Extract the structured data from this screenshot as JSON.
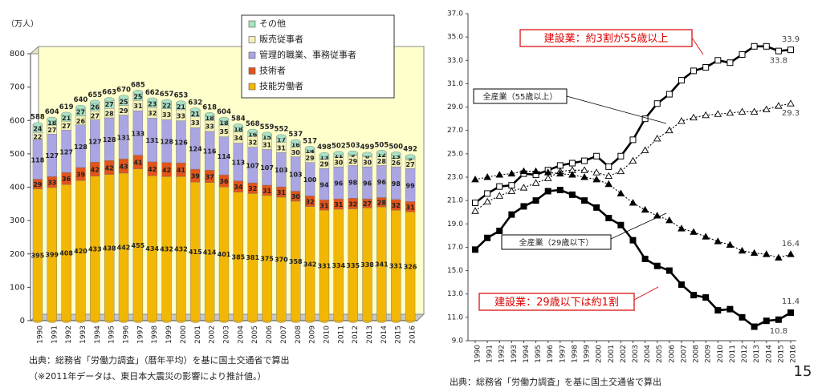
{
  "chart_data": [
    {
      "type": "bar",
      "stacked": true,
      "ylabel": "（万人）",
      "categories": [
        "1990",
        "1991",
        "1992",
        "1993",
        "1994",
        "1995",
        "1996",
        "1997",
        "1998",
        "1999",
        "2000",
        "2001",
        "2002",
        "2003",
        "2004",
        "2005",
        "2006",
        "2007",
        "2008",
        "2009",
        "2010",
        "2011",
        "2012",
        "2013",
        "2014",
        "2015",
        "2016"
      ],
      "series": [
        {
          "name": "技能労働者",
          "color": "#f2b705",
          "values": [
            395,
            399,
            408,
            420,
            433,
            438,
            442,
            455,
            434,
            432,
            432,
            415,
            414,
            401,
            385,
            381,
            375,
            370,
            358,
            342,
            331,
            334,
            335,
            338,
            341,
            331,
            326
          ]
        },
        {
          "name": "技術者",
          "color": "#e2541b",
          "values": [
            29,
            33,
            36,
            39,
            42,
            42,
            43,
            41,
            42,
            42,
            41,
            39,
            37,
            36,
            34,
            32,
            31,
            31,
            30,
            32,
            31,
            31,
            32,
            27,
            28,
            32,
            31
          ]
        },
        {
          "name": "管理的職業、事務従事者",
          "color": "#aaa5e3",
          "values": [
            118,
            127,
            127,
            128,
            127,
            128,
            131,
            133,
            131,
            128,
            126,
            124,
            116,
            114,
            113,
            107,
            107,
            103,
            103,
            100,
            94,
            96,
            98,
            96,
            96,
            98,
            99
          ]
        },
        {
          "name": "販売従事者",
          "color": "#f3f1b8",
          "values": [
            22,
            27,
            27,
            26,
            27,
            28,
            29,
            31,
            32,
            33,
            33,
            33,
            33,
            35,
            34,
            32,
            31,
            31,
            30,
            29,
            29,
            30,
            29,
            30,
            28,
            26,
            27
          ]
        },
        {
          "name": "その他",
          "color": "#a9e2c4",
          "values": [
            24,
            18,
            21,
            27,
            26,
            27,
            25,
            25,
            23,
            22,
            21,
            21,
            18,
            18,
            18,
            16,
            15,
            17,
            16,
            14,
            13,
            11,
            9,
            8,
            12,
            13,
            9
          ]
        }
      ],
      "totals": [
        588,
        604,
        619,
        640,
        655,
        663,
        670,
        685,
        662,
        657,
        653,
        632,
        618,
        604,
        584,
        568,
        559,
        552,
        537,
        517,
        498,
        502,
        503,
        499,
        505,
        500,
        492
      ],
      "ylim": [
        0,
        800
      ],
      "yticks": [
        0,
        100,
        200,
        300,
        400,
        500,
        600,
        700,
        800
      ]
    },
    {
      "type": "line",
      "categories": [
        "1990",
        "1991",
        "1992",
        "1993",
        "1994",
        "1995",
        "1996",
        "1997",
        "1998",
        "1999",
        "2000",
        "2001",
        "2002",
        "2003",
        "2004",
        "2005",
        "2006",
        "2007",
        "2008",
        "2009",
        "2010",
        "2011",
        "2012",
        "2013",
        "2014",
        "2015",
        "2016"
      ],
      "series": [
        {
          "name": "建設業：約3割が55歳以上",
          "color": "#000000",
          "marker": "square-open",
          "dash": "solid",
          "values": [
            20.8,
            21.6,
            22.2,
            22.3,
            23.3,
            23.2,
            23.6,
            24.0,
            24.2,
            24.4,
            24.8,
            23.9,
            24.8,
            26.2,
            28.0,
            29.3,
            30.1,
            31.3,
            32.1,
            32.4,
            33.0,
            32.8,
            33.5,
            34.2,
            34.2,
            33.8,
            33.9
          ]
        },
        {
          "name": "全産業（55歳以上）",
          "color": "#000000",
          "marker": "triangle-open",
          "dash": "dotted",
          "values": [
            20.1,
            20.9,
            21.4,
            21.8,
            22.1,
            22.5,
            22.9,
            23.5,
            23.6,
            23.6,
            23.4,
            23.1,
            23.5,
            24.4,
            25.3,
            26.3,
            27.0,
            27.8,
            28.1,
            28.3,
            28.4,
            28.5,
            28.6,
            28.6,
            28.8,
            29.1,
            29.3
          ]
        },
        {
          "name": "全産業（29歳以下）",
          "color": "#000000",
          "marker": "triangle",
          "dash": "dotted",
          "values": [
            22.8,
            23.0,
            23.2,
            23.3,
            23.5,
            23.5,
            23.4,
            23.3,
            23.2,
            23.0,
            22.8,
            22.4,
            21.6,
            20.8,
            20.2,
            19.7,
            19.3,
            18.6,
            18.3,
            17.9,
            17.5,
            17.2,
            16.7,
            16.5,
            16.4,
            16.1,
            16.4
          ]
        },
        {
          "name": "建設業：29歳以下は約1割",
          "color": "#000000",
          "marker": "square",
          "dash": "solid",
          "values": [
            16.8,
            17.8,
            18.4,
            19.8,
            20.5,
            21.0,
            21.8,
            21.9,
            21.5,
            21.0,
            20.4,
            19.5,
            18.9,
            17.6,
            16.0,
            15.4,
            15.0,
            13.8,
            12.9,
            12.7,
            11.6,
            11.7,
            11.0,
            10.2,
            10.7,
            10.8,
            11.4
          ]
        }
      ],
      "ylim": [
        9,
        37
      ],
      "yticks": [
        {
          "value": 9,
          "label": "9.0"
        },
        {
          "value": 11,
          "label": "11.0"
        },
        {
          "value": 13,
          "label": "13.0"
        },
        {
          "value": 15,
          "label": "15.0"
        },
        {
          "value": 17,
          "label": "17.0"
        },
        {
          "value": 19,
          "label": "19.0"
        },
        {
          "value": 21,
          "label": "21.0"
        },
        {
          "value": 23,
          "label": "23.0"
        },
        {
          "value": 25,
          "label": "25.0"
        },
        {
          "value": 27,
          "label": "27.0"
        },
        {
          "value": 29,
          "label": "29.0"
        },
        {
          "value": 31,
          "label": "31.0"
        },
        {
          "value": 33,
          "label": "33.0"
        },
        {
          "value": 35,
          "label": "35.0"
        },
        {
          "value": 37,
          "label": "37.0"
        }
      ]
    }
  ],
  "footnotes": [
    "出典：総務省「労働力調査」（暦年平均）を基に国土交通省で算出",
    "（※2011年データは、東日本大震災の影響により推計値。）",
    "出典：総務省「労働力調査」を基に国土交通省で算出"
  ],
  "page_number": "15"
}
